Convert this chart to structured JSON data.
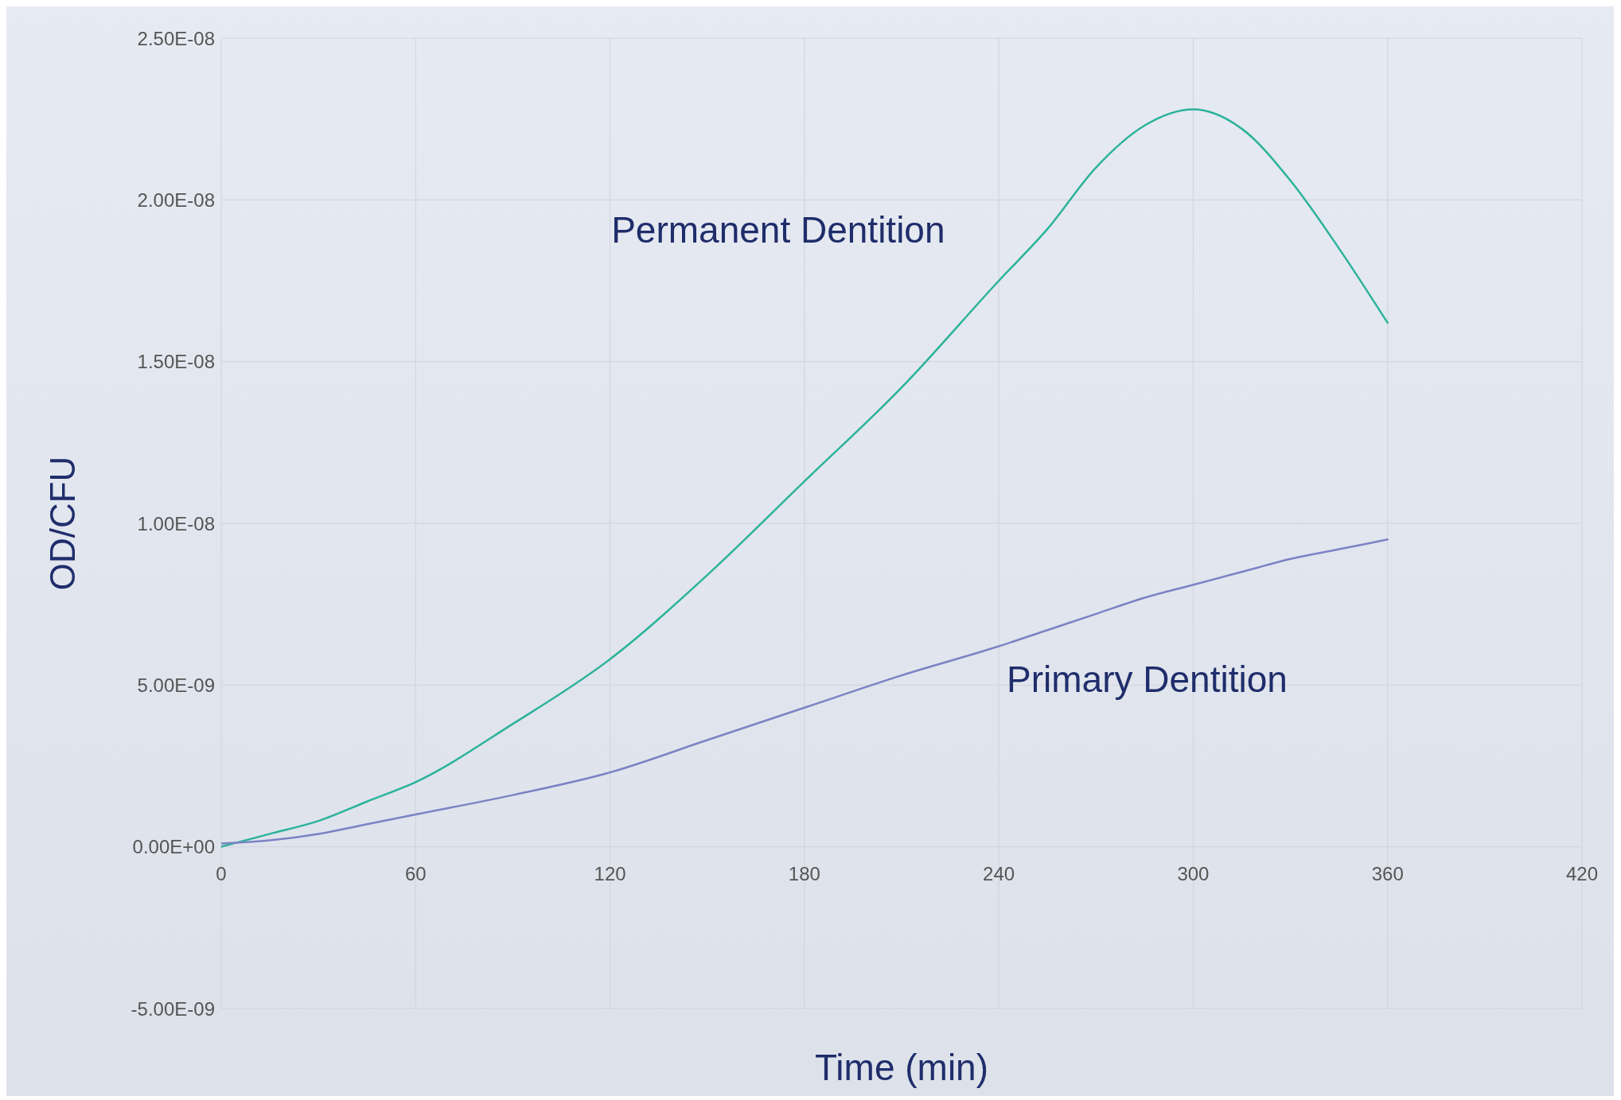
{
  "chart_data": {
    "type": "line",
    "xlabel": "Time (min)",
    "ylabel": "OD/CFU",
    "x": [
      0,
      15,
      30,
      45,
      60,
      90,
      120,
      150,
      180,
      210,
      240,
      255,
      270,
      285,
      300,
      315,
      330,
      345,
      360
    ],
    "series": [
      {
        "name": "Permanent Dentition",
        "color": "#2bb39a",
        "values": [
          0,
          4e-10,
          8e-10,
          1.4e-09,
          2e-09,
          3.8e-09,
          5.8e-09,
          8.4e-09,
          1.13e-08,
          1.42e-08,
          1.75e-08,
          1.91e-08,
          2.1e-08,
          2.23e-08,
          2.28e-08,
          2.22e-08,
          2.06e-08,
          1.85e-08,
          1.62e-08
        ]
      },
      {
        "name": "Primary Dentition",
        "color": "#7b83c4",
        "values": [
          1e-10,
          2e-10,
          4e-10,
          7e-10,
          1e-09,
          1.6e-09,
          2.3e-09,
          3.3e-09,
          4.3e-09,
          5.3e-09,
          6.2e-09,
          6.7e-09,
          7.2e-09,
          7.7e-09,
          8.1e-09,
          8.5e-09,
          8.9e-09,
          9.2e-09,
          9.5e-09
        ]
      }
    ],
    "xlim": [
      0,
      420
    ],
    "xticks": [
      0,
      60,
      120,
      180,
      240,
      300,
      360,
      420
    ],
    "ylim": [
      -5e-09,
      2.5e-08
    ],
    "yticks": [
      {
        "value": -5e-09,
        "label": "-5.00E-09"
      },
      {
        "value": 0,
        "label": "0.00E+00"
      },
      {
        "value": 5e-09,
        "label": "5.00E-09"
      },
      {
        "value": 1e-08,
        "label": "1.00E-08"
      },
      {
        "value": 1.5e-08,
        "label": "1.50E-08"
      },
      {
        "value": 2e-08,
        "label": "2.00E-08"
      },
      {
        "value": 2.5e-08,
        "label": "2.50E-08"
      }
    ],
    "grid": true
  }
}
